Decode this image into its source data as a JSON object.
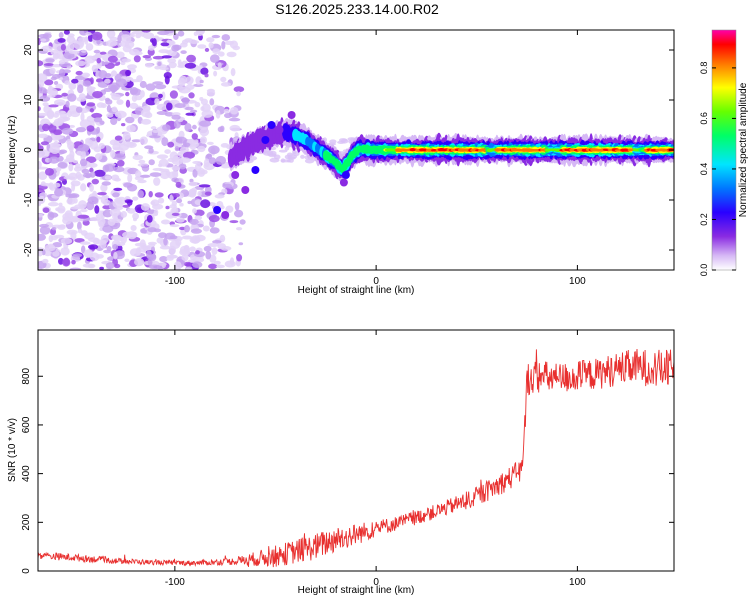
{
  "title": "S126.2025.233.14.00.R02",
  "chart_data": [
    {
      "type": "heatmap",
      "name": "spectrogram",
      "xlabel": "Height of straight line (km)",
      "ylabel": "Frequency (Hz)",
      "xlim": [
        -168,
        148
      ],
      "ylim": [
        -24,
        24
      ],
      "xticks": [
        -100,
        0,
        100
      ],
      "yticks": [
        -20,
        -10,
        0,
        10,
        20
      ],
      "colorbar": {
        "label": "Normalized spectral amplitude",
        "range": [
          0,
          0.95
        ],
        "ticks": [
          "0.0",
          "0.2",
          "0.4",
          "0.6",
          "0.8"
        ],
        "tick_values": [
          0.0,
          0.2,
          0.4,
          0.6,
          0.8
        ]
      },
      "signal_trace": {
        "x": [
          -72,
          -65,
          -58,
          -50,
          -45,
          -40,
          -35,
          -30,
          -25,
          -20,
          -17,
          -15,
          -12,
          -8,
          0,
          20,
          50,
          80,
          110,
          140,
          148
        ],
        "y": [
          -1.5,
          0.5,
          2,
          3,
          3.5,
          3,
          2,
          0.5,
          -1,
          -2.5,
          -4,
          -3,
          -1,
          0.2,
          0,
          0,
          0,
          0,
          0,
          0,
          0
        ]
      },
      "noise_region_x": [
        -168,
        -72
      ]
    },
    {
      "type": "line",
      "name": "snr",
      "xlabel": "Height of straight line (km)",
      "ylabel": "SNR (10 * v/v)",
      "xlim": [
        -168,
        148
      ],
      "ylim": [
        0,
        990
      ],
      "xticks": [
        -100,
        0,
        100
      ],
      "yticks": [
        0,
        200,
        400,
        600,
        800
      ],
      "color": "#e8302f",
      "trend": {
        "x": [
          -168,
          -150,
          -130,
          -110,
          -90,
          -70,
          -60,
          -50,
          -40,
          -30,
          -20,
          -10,
          0,
          10,
          20,
          30,
          40,
          50,
          60,
          70,
          73,
          75,
          80,
          90,
          100,
          110,
          120,
          130,
          140,
          148
        ],
        "y": [
          65,
          55,
          42,
          35,
          33,
          40,
          50,
          60,
          80,
          100,
          130,
          150,
          175,
          195,
          220,
          245,
          275,
          305,
          350,
          400,
          430,
          790,
          800,
          790,
          800,
          810,
          830,
          840,
          830,
          830
        ],
        "noise": [
          15,
          15,
          12,
          10,
          10,
          15,
          30,
          45,
          50,
          55,
          55,
          45,
          35,
          30,
          30,
          30,
          35,
          40,
          45,
          50,
          60,
          70,
          70,
          65,
          65,
          65,
          70,
          75,
          80,
          80
        ]
      }
    }
  ]
}
